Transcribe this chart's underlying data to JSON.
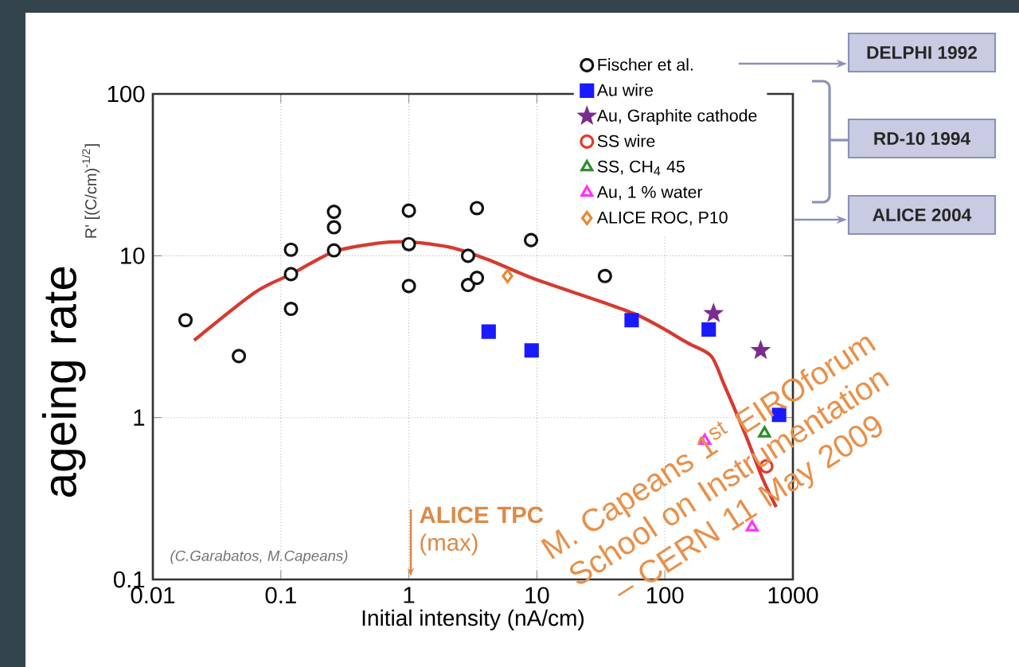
{
  "chart_data": {
    "type": "scatter",
    "xlabel": "Initial intensity (nA/cm)",
    "ylabel": "ageing rate",
    "log": "xy",
    "grid": true,
    "legend": "top right",
    "xlim": [
      0.01,
      1000
    ],
    "ylim": [
      0.1,
      100
    ],
    "xticks": [
      0.01,
      0.1,
      1,
      10,
      100,
      1000
    ],
    "yticks": [
      0.1,
      1,
      10,
      100
    ],
    "series": [
      {
        "name": "Fischer et al.",
        "color": "#111111",
        "marker": "circle",
        "x": [
          0.018,
          0.047,
          0.12,
          0.12,
          0.12,
          0.26,
          0.26,
          0.26,
          1,
          1,
          1,
          2.9,
          2.9,
          3.4,
          3.4,
          9,
          34
        ],
        "values": [
          4.0,
          2.4,
          10.9,
          7.7,
          4.7,
          18.7,
          15,
          10.8,
          19,
          11.8,
          6.5,
          10,
          6.6,
          7.3,
          19.7,
          12.5,
          7.5
        ]
      },
      {
        "name": "Au wire",
        "color": "#1a1aff",
        "marker": "square",
        "x": [
          4.2,
          9.1,
          55,
          220,
          780
        ],
        "values": [
          3.4,
          2.6,
          4.0,
          3.5,
          1.04
        ]
      },
      {
        "name": "Au, Graphite cathode",
        "color": "#7b2c8f",
        "marker": "star",
        "x": [
          240,
          560
        ],
        "values": [
          4.4,
          2.6
        ]
      },
      {
        "name": "SS wire",
        "color": "#e8372a",
        "marker": "circle",
        "x": [
          620
        ],
        "values": [
          0.5
        ]
      },
      {
        "name": "SS, CH$_{4}$ 45",
        "color": "#2e8b2e",
        "marker": "triangle",
        "x": [
          600
        ],
        "values": [
          0.8
        ]
      },
      {
        "name": "Au, 1 % water",
        "color": "#ff33ff",
        "marker": "triangle",
        "x": [
          205,
          480
        ],
        "values": [
          0.72,
          0.21
        ]
      },
      {
        "name": "ALICE ROC, P10",
        "color": "#e6892e",
        "marker": "diamond",
        "x": [
          5.9
        ],
        "values": [
          7.5
        ]
      },
      {
        "type": "line",
        "color": "#d63a2f",
        "marker": "none",
        "x": [
          0.021,
          0.062,
          0.12,
          0.26,
          0.55,
          1,
          2.2,
          4.4,
          10,
          57,
          150,
          230,
          290,
          430,
          580,
          740
        ],
        "values": [
          3.0,
          5.9,
          7.7,
          10.6,
          11.9,
          12.2,
          11.2,
          9.3,
          7.1,
          4.4,
          2.9,
          2.4,
          1.6,
          0.77,
          0.42,
          0.28
        ]
      }
    ],
    "annotations": [
      "R' [(C/cm)$^{-1/2}$]",
      "DELPHI 1992",
      "RD-10 1994",
      "ALICE 2004",
      "(C.Garabatos, M.Capeans)",
      "**ALICE TPC** (max)",
      "M. Capeans 1$^{st}$ EIROforum School on Instrumentation – CERN 11 May 2009"
    ]
  }
}
